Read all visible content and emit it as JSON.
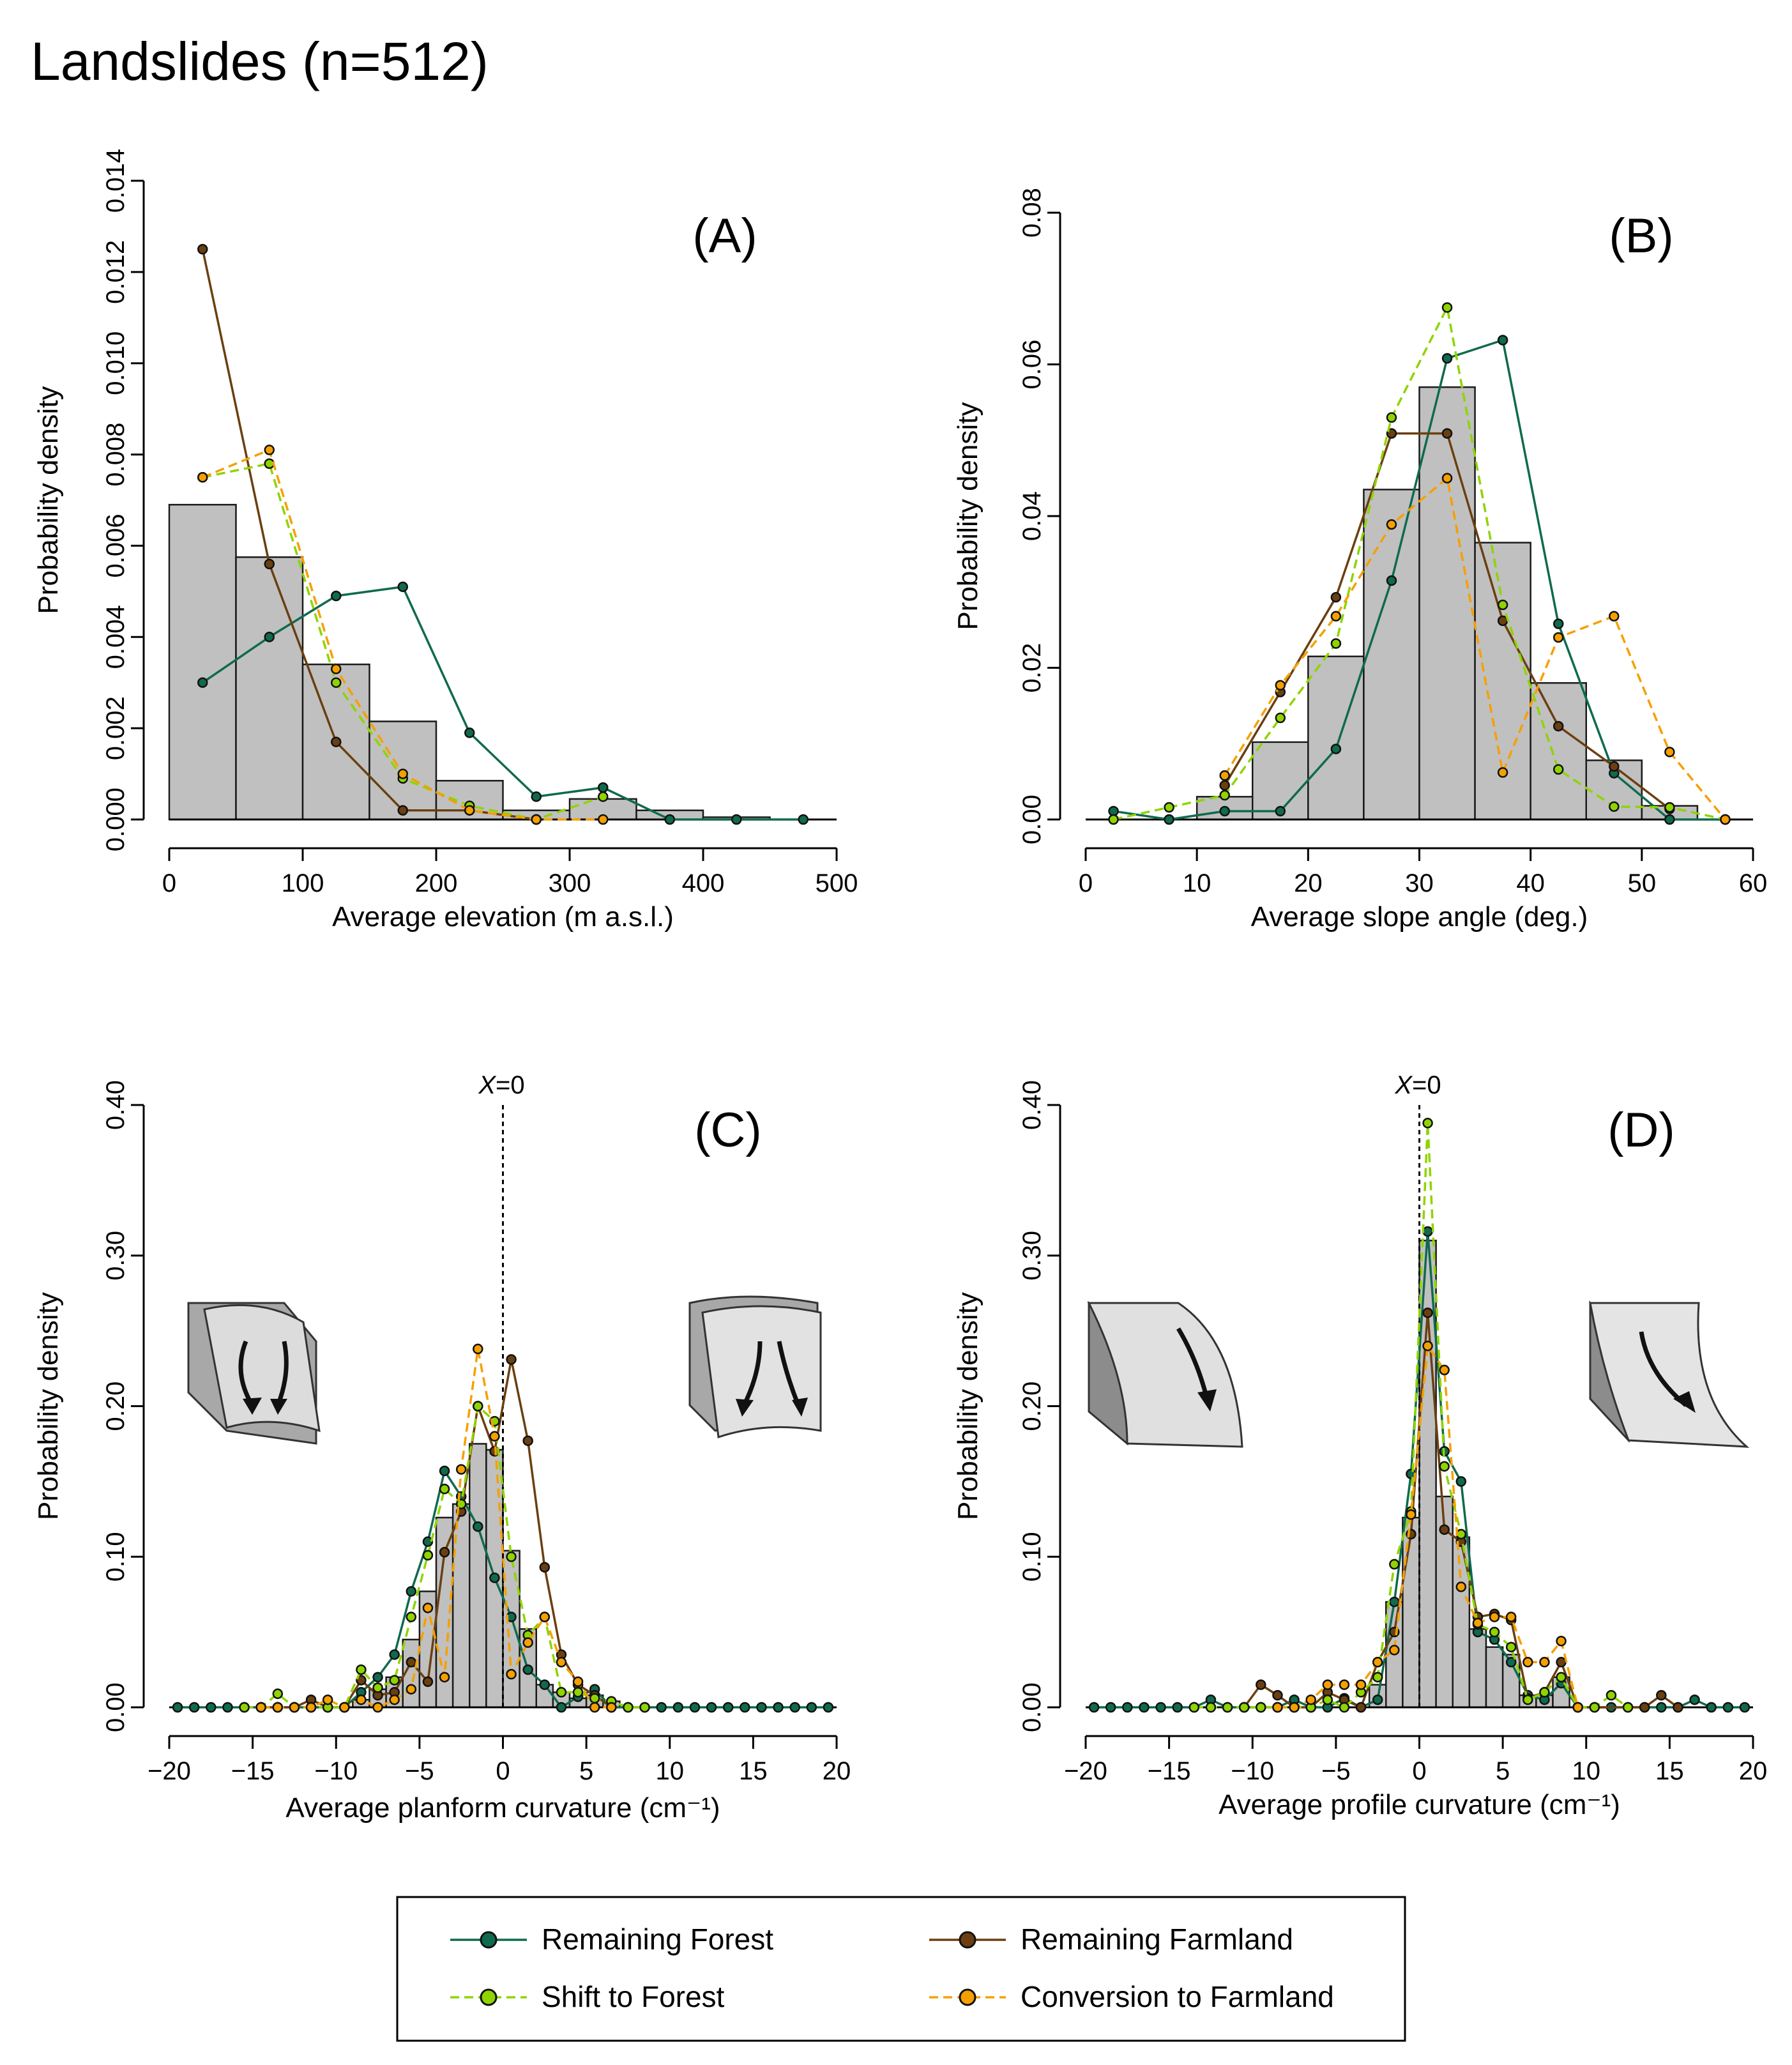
{
  "figure_title": "Landslides (n=512)",
  "colors": {
    "remaining_forest": "#0f6a4e",
    "remaining_farmland": "#6b3f10",
    "shift_to_forest": "#8fd400",
    "conversion_to_farmland": "#f5a000",
    "histogram_fill": "#c0c0c0"
  },
  "legend": {
    "remaining_forest": "Remaining Forest",
    "remaining_farmland": "Remaining Farmland",
    "shift_to_forest": "Shift to Forest",
    "conversion_to_farmland": "Conversion to Farmland"
  },
  "chart_data": [
    {
      "type": "bar",
      "panel": "(A)",
      "xlabel": "Average elevation (m a.s.l.)",
      "ylabel": "Probability density",
      "xlim": [
        0,
        500
      ],
      "ylim": [
        0,
        0.014
      ],
      "xticks": [
        0,
        100,
        200,
        300,
        400,
        500
      ],
      "xtick_labels": [
        "0",
        "100",
        "200",
        "300",
        "400",
        "500"
      ],
      "yticks": [
        0,
        0.002,
        0.004,
        0.006,
        0.008,
        0.01,
        0.012,
        0.014
      ],
      "ytick_labels": [
        "0.000",
        "0.002",
        "0.004",
        "0.006",
        "0.008",
        "0.010",
        "0.012",
        "0.014"
      ],
      "histogram": {
        "edges": [
          0,
          50,
          100,
          150,
          200,
          250,
          300,
          350,
          400,
          450
        ],
        "values": [
          0.0069,
          0.00575,
          0.0034,
          0.00215,
          0.00085,
          0.0002,
          0.00045,
          0.0002,
          5e-05
        ]
      },
      "series": [
        {
          "name": "Remaining Forest",
          "x": [
            25,
            75,
            125,
            175,
            225,
            275,
            325,
            375,
            425,
            475
          ],
          "y": [
            0.003,
            0.004,
            0.0049,
            0.0051,
            0.0019,
            0.0005,
            0.0007,
            0.0,
            0.0,
            0.0
          ]
        },
        {
          "name": "Remaining Farmland",
          "x": [
            25,
            75,
            125,
            175,
            225,
            275
          ],
          "y": [
            0.0125,
            0.0056,
            0.0017,
            0.0002,
            0.0002,
            0.0
          ]
        },
        {
          "name": "Shift to Forest",
          "x": [
            25,
            75,
            125,
            175,
            225,
            275,
            325
          ],
          "y": [
            0.0075,
            0.0078,
            0.003,
            0.0009,
            0.0003,
            0.0,
            0.0005
          ]
        },
        {
          "name": "Conversion to Farmland",
          "x": [
            25,
            75,
            125,
            175,
            225,
            275,
            325
          ],
          "y": [
            0.0075,
            0.0081,
            0.0033,
            0.001,
            0.0002,
            0.0,
            0.0
          ]
        }
      ]
    },
    {
      "type": "bar",
      "panel": "(B)",
      "xlabel": "Average slope angle (deg.)",
      "ylabel": "Probability density",
      "xlim": [
        0,
        60
      ],
      "ylim": [
        0,
        0.08
      ],
      "xticks": [
        0,
        10,
        20,
        30,
        40,
        50,
        60
      ],
      "xtick_labels": [
        "0",
        "10",
        "20",
        "30",
        "40",
        "50",
        "60"
      ],
      "yticks": [
        0,
        0.02,
        0.04,
        0.06,
        0.08
      ],
      "ytick_labels": [
        "0.00",
        "0.02",
        "0.04",
        "0.06",
        "0.08"
      ],
      "histogram": {
        "edges": [
          0,
          5,
          10,
          15,
          20,
          25,
          30,
          35,
          40,
          45,
          50,
          55
        ],
        "values": [
          0.0,
          0.0,
          0.003,
          0.0102,
          0.0215,
          0.0435,
          0.057,
          0.0365,
          0.018,
          0.0078,
          0.0018
        ]
      },
      "series": [
        {
          "name": "Remaining Forest",
          "x": [
            2.5,
            7.5,
            12.5,
            17.5,
            22.5,
            27.5,
            32.5,
            37.5,
            42.5,
            47.5,
            52.5,
            57.5
          ],
          "y": [
            0.0011,
            0.0,
            0.0011,
            0.0011,
            0.0093,
            0.0315,
            0.0608,
            0.0632,
            0.0258,
            0.0061,
            0.0,
            0.0
          ]
        },
        {
          "name": "Remaining Farmland",
          "x": [
            12.5,
            17.5,
            22.5,
            27.5,
            32.5,
            37.5,
            42.5,
            47.5,
            52.5
          ],
          "y": [
            0.0045,
            0.0168,
            0.0293,
            0.0509,
            0.0509,
            0.0262,
            0.0123,
            0.007,
            0.0014
          ]
        },
        {
          "name": "Shift to Forest",
          "x": [
            2.5,
            7.5,
            12.5,
            17.5,
            22.5,
            27.5,
            32.5,
            37.5,
            42.5,
            47.5,
            52.5,
            57.5
          ],
          "y": [
            0.0,
            0.0016,
            0.0032,
            0.0134,
            0.0232,
            0.053,
            0.0675,
            0.0283,
            0.0066,
            0.0017,
            0.0016,
            0.0
          ]
        },
        {
          "name": "Conversion to Farmland",
          "x": [
            12.5,
            17.5,
            22.5,
            27.5,
            32.5,
            37.5,
            42.5,
            47.5,
            52.5,
            57.5
          ],
          "y": [
            0.0058,
            0.0177,
            0.0268,
            0.0389,
            0.045,
            0.0062,
            0.024,
            0.0268,
            0.0089,
            0.0
          ]
        }
      ]
    },
    {
      "type": "bar",
      "panel": "(C)",
      "xlabel": "Average planform curvature (cm⁻¹)",
      "ylabel": "Probability density",
      "xlim": [
        -20,
        20
      ],
      "ylim": [
        0,
        0.4
      ],
      "xticks": [
        -20,
        -15,
        -10,
        -5,
        0,
        5,
        10,
        15,
        20
      ],
      "xtick_labels": [
        "−20",
        "−15",
        "−10",
        "−5",
        "0",
        "5",
        "10",
        "15",
        "20"
      ],
      "yticks": [
        0,
        0.1,
        0.2,
        0.3,
        0.4
      ],
      "ytick_labels": [
        "0.00",
        "0.10",
        "0.20",
        "0.30",
        "0.40"
      ],
      "vline": {
        "x": 0,
        "label": "X=0"
      },
      "histogram": {
        "edges": [
          -9,
          -8,
          -7,
          -6,
          -5,
          -4,
          -3,
          -2,
          -1,
          0,
          1,
          2,
          3,
          4,
          5,
          6,
          7
        ],
        "values": [
          0.005,
          0.012,
          0.02,
          0.045,
          0.077,
          0.126,
          0.135,
          0.175,
          0.171,
          0.104,
          0.052,
          0.015,
          0.01,
          0.006,
          0.008,
          0.004
        ]
      },
      "series": [
        {
          "name": "Remaining Forest",
          "x": [
            -19.5,
            -18.5,
            -17.5,
            -16.5,
            -15.5,
            -14.5,
            -13.5,
            -12.5,
            -11.5,
            -10.5,
            -9.5,
            -8.5,
            -7.5,
            -6.5,
            -5.5,
            -4.5,
            -3.5,
            -2.5,
            -1.5,
            -0.5,
            0.5,
            1.5,
            2.5,
            3.5,
            4.5,
            5.5,
            6.5,
            7.5,
            8.5,
            9.5,
            10.5,
            11.5,
            12.5,
            13.5,
            14.5,
            15.5,
            16.5,
            17.5,
            18.5,
            19.5
          ],
          "y": [
            0,
            0,
            0,
            0,
            0,
            0,
            0,
            0,
            0,
            0,
            0,
            0.01,
            0.02,
            0.035,
            0.077,
            0.11,
            0.157,
            0.14,
            0.12,
            0.086,
            0.06,
            0.025,
            0.015,
            0,
            0.007,
            0.012,
            0,
            0,
            0,
            0,
            0,
            0,
            0,
            0,
            0,
            0,
            0,
            0,
            0,
            0
          ]
        },
        {
          "name": "Remaining Farmland",
          "x": [
            -14.5,
            -13.5,
            -12.5,
            -11.5,
            -10.5,
            -9.5,
            -8.5,
            -7.5,
            -6.5,
            -5.5,
            -4.5,
            -3.5,
            -2.5,
            -1.5,
            -0.5,
            0.5,
            1.5,
            2.5,
            3.5,
            4.5,
            5.5,
            6.5
          ],
          "y": [
            0,
            0,
            0,
            0.005,
            0,
            0,
            0.018,
            0.008,
            0.01,
            0.03,
            0.017,
            0.103,
            0.13,
            0.2,
            0.17,
            0.231,
            0.177,
            0.093,
            0.035,
            0.015,
            0.008,
            0
          ]
        },
        {
          "name": "Shift to Forest",
          "x": [
            -15.5,
            -14.5,
            -13.5,
            -12.5,
            -11.5,
            -10.5,
            -9.5,
            -8.5,
            -7.5,
            -6.5,
            -5.5,
            -4.5,
            -3.5,
            -2.5,
            -1.5,
            -0.5,
            0.5,
            1.5,
            2.5,
            3.5,
            4.5,
            5.5,
            6.5,
            7.5,
            8.5
          ],
          "y": [
            0,
            0,
            0.009,
            0,
            0,
            0,
            0,
            0.025,
            0.013,
            0.018,
            0.06,
            0.101,
            0.145,
            0.135,
            0.2,
            0.19,
            0.1,
            0.048,
            0.06,
            0.01,
            0.01,
            0.006,
            0.004,
            0,
            0
          ]
        },
        {
          "name": "Conversion to Farmland",
          "x": [
            -14.5,
            -13.5,
            -12.5,
            -11.5,
            -10.5,
            -9.5,
            -8.5,
            -7.5,
            -6.5,
            -5.5,
            -4.5,
            -3.5,
            -2.5,
            -1.5,
            -0.5,
            0.5,
            1.5,
            2.5,
            3.5,
            4.5,
            5.5,
            6.5
          ],
          "y": [
            0,
            0,
            0,
            0,
            0.005,
            0,
            0.005,
            0,
            0.005,
            0.012,
            0.066,
            0.02,
            0.158,
            0.238,
            0.18,
            0.022,
            0.043,
            0.06,
            0.03,
            0.017,
            0,
            0
          ]
        }
      ]
    },
    {
      "type": "bar",
      "panel": "(D)",
      "xlabel": "Average profile curvature (cm⁻¹)",
      "ylabel": "Probability density",
      "xlim": [
        -20,
        20
      ],
      "ylim": [
        0,
        0.4
      ],
      "xticks": [
        -20,
        -15,
        -10,
        -5,
        0,
        5,
        10,
        15,
        20
      ],
      "xtick_labels": [
        "−20",
        "−15",
        "−10",
        "−5",
        "0",
        "5",
        "10",
        "15",
        "20"
      ],
      "yticks": [
        0,
        0.1,
        0.2,
        0.3,
        0.4
      ],
      "ytick_labels": [
        "0.00",
        "0.10",
        "0.20",
        "0.30",
        "0.40"
      ],
      "vline": {
        "x": 0,
        "label": "X=0"
      },
      "histogram": {
        "edges": [
          -3,
          -2,
          -1,
          0,
          1,
          2,
          3,
          4,
          5,
          6,
          7,
          8,
          9
        ],
        "values": [
          0.015,
          0.07,
          0.126,
          0.31,
          0.14,
          0.113,
          0.052,
          0.04,
          0.035,
          0.008,
          0.008,
          0.02
        ]
      },
      "series": [
        {
          "name": "Remaining Forest",
          "x": [
            -19.5,
            -18.5,
            -17.5,
            -16.5,
            -15.5,
            -14.5,
            -13.5,
            -12.5,
            -11.5,
            -10.5,
            -9.5,
            -8.5,
            -7.5,
            -6.5,
            -5.5,
            -4.5,
            -3.5,
            -2.5,
            -1.5,
            -0.5,
            0.5,
            1.5,
            2.5,
            3.5,
            4.5,
            5.5,
            6.5,
            7.5,
            8.5,
            9.5,
            10.5,
            11.5,
            12.5,
            13.5,
            14.5,
            15.5,
            16.5,
            17.5,
            18.5,
            19.5
          ],
          "y": [
            0,
            0,
            0,
            0,
            0,
            0,
            0,
            0.005,
            0,
            0,
            0,
            0,
            0.005,
            0,
            0,
            0.006,
            0,
            0.005,
            0.07,
            0.155,
            0.316,
            0.17,
            0.15,
            0.05,
            0.045,
            0.03,
            0.008,
            0.005,
            0.016,
            0,
            0,
            0,
            0,
            0,
            0,
            0,
            0.005,
            0,
            0,
            0
          ]
        },
        {
          "name": "Remaining Farmland",
          "x": [
            -10.5,
            -9.5,
            -8.5,
            -7.5,
            -6.5,
            -5.5,
            -4.5,
            -3.5,
            -2.5,
            -1.5,
            -0.5,
            0.5,
            1.5,
            2.5,
            3.5,
            4.5,
            5.5,
            6.5,
            7.5,
            8.5,
            9.5,
            13.5,
            14.5,
            15.5
          ],
          "y": [
            0,
            0.015,
            0.008,
            0,
            0,
            0.01,
            0.005,
            0,
            0.03,
            0.05,
            0.115,
            0.262,
            0.118,
            0.11,
            0.06,
            0.062,
            0.058,
            0.006,
            0.01,
            0.03,
            0,
            0,
            0.008,
            0
          ]
        },
        {
          "name": "Shift to Forest",
          "x": [
            -13.5,
            -12.5,
            -11.5,
            -10.5,
            -9.5,
            -8.5,
            -7.5,
            -6.5,
            -5.5,
            -4.5,
            -3.5,
            -2.5,
            -1.5,
            -0.5,
            0.5,
            1.5,
            2.5,
            3.5,
            4.5,
            5.5,
            6.5,
            7.5,
            8.5,
            9.5,
            10.5,
            11.5,
            12.5
          ],
          "y": [
            0,
            0,
            0,
            0,
            0,
            0,
            0,
            0,
            0.005,
            0,
            0.01,
            0.02,
            0.095,
            0.13,
            0.388,
            0.16,
            0.115,
            0.055,
            0.05,
            0.04,
            0.005,
            0.01,
            0.02,
            0,
            0,
            0.008,
            0
          ]
        },
        {
          "name": "Conversion to Farmland",
          "x": [
            -8.5,
            -7.5,
            -6.5,
            -5.5,
            -4.5,
            -3.5,
            -2.5,
            -1.5,
            -0.5,
            0.5,
            1.5,
            2.5,
            3.5,
            4.5,
            5.5,
            6.5,
            7.5,
            8.5,
            9.5
          ],
          "y": [
            0,
            0,
            0.005,
            0.015,
            0.015,
            0.015,
            0.03,
            0.038,
            0.128,
            0.24,
            0.224,
            0.08,
            0.056,
            0.06,
            0.06,
            0.03,
            0.03,
            0.044,
            0
          ]
        }
      ]
    }
  ]
}
